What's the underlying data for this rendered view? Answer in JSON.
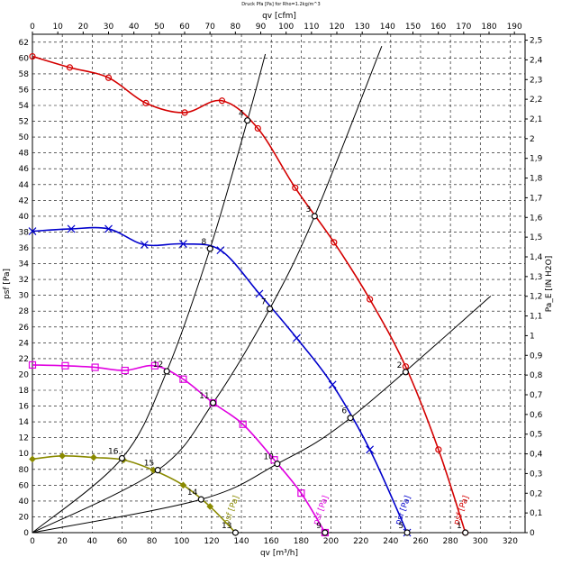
{
  "chart_data": {
    "type": "line",
    "title": "Druck Pfa [Pa] for Rho=1.2kg/m^3",
    "x_label": "qv [m³/h]",
    "x2_label": "qv [cfm]",
    "y_label": "psf [Pa]",
    "y2_label": "Pa_E [IN H2O]",
    "xlim": [
      0,
      330
    ],
    "xticks": [
      0,
      20,
      40,
      60,
      80,
      100,
      120,
      140,
      160,
      180,
      200,
      220,
      240,
      260,
      280,
      300,
      320
    ],
    "x2lim": [
      0,
      194.2
    ],
    "x2ticks": [
      0,
      10,
      20,
      30,
      40,
      50,
      60,
      70,
      80,
      90,
      100,
      110,
      120,
      130,
      140,
      150,
      160,
      170,
      180,
      190
    ],
    "ylim": [
      0,
      630
    ],
    "yticks": [
      0,
      20,
      40,
      60,
      80,
      {
        "value": 100,
        "label": "10"
      },
      {
        "value": 120,
        "label": "12"
      },
      {
        "value": 140,
        "label": "14"
      },
      {
        "value": 160,
        "label": "16"
      },
      {
        "value": 180,
        "label": "18"
      },
      {
        "value": 200,
        "label": "20"
      },
      {
        "value": 220,
        "label": "22"
      },
      {
        "value": 240,
        "label": "24"
      },
      {
        "value": 260,
        "label": "26"
      },
      {
        "value": 280,
        "label": "28"
      },
      {
        "value": 300,
        "label": "30"
      },
      {
        "value": 320,
        "label": "32"
      },
      {
        "value": 340,
        "label": "34"
      },
      {
        "value": 360,
        "label": "36"
      },
      {
        "value": 380,
        "label": "38"
      },
      {
        "value": 400,
        "label": "40"
      },
      {
        "value": 420,
        "label": "42"
      },
      {
        "value": 440,
        "label": "44"
      },
      {
        "value": 460,
        "label": "46"
      },
      {
        "value": 480,
        "label": "48"
      },
      {
        "value": 500,
        "label": "50"
      },
      {
        "value": 520,
        "label": "52"
      },
      {
        "value": 540,
        "label": "54"
      },
      {
        "value": 560,
        "label": "56"
      },
      {
        "value": 580,
        "label": "58"
      },
      {
        "value": 600,
        "label": "60"
      },
      {
        "value": 620,
        "label": "62"
      }
    ],
    "y2lim": [
      0,
      2.53
    ],
    "y2ticks": [
      0,
      {
        "value": 0.1,
        "label": "0,1"
      },
      {
        "value": 0.2,
        "label": "0,2"
      },
      {
        "value": 0.3,
        "label": "0,3"
      },
      {
        "value": 0.4,
        "label": "0,4"
      },
      {
        "value": 0.5,
        "label": "0,5"
      },
      {
        "value": 0.6,
        "label": "0,6"
      },
      {
        "value": 0.7,
        "label": "0,7"
      },
      {
        "value": 0.8,
        "label": "0,8"
      },
      {
        "value": 0.9,
        "label": "0,9"
      },
      1,
      {
        "value": 1.1,
        "label": "1,1"
      },
      {
        "value": 1.2,
        "label": "1,2"
      },
      {
        "value": 1.3,
        "label": "1,3"
      },
      {
        "value": 1.4,
        "label": "1,4"
      },
      {
        "value": 1.5,
        "label": "1,5"
      },
      {
        "value": 1.6,
        "label": "1,6"
      },
      {
        "value": 1.7,
        "label": "1,7"
      },
      {
        "value": 1.8,
        "label": "1,8"
      },
      {
        "value": 1.9,
        "label": "1,9"
      },
      2,
      {
        "value": 2.1,
        "label": "2,1"
      },
      {
        "value": 2.2,
        "label": "2,2"
      },
      {
        "value": 2.3,
        "label": "2,3"
      },
      {
        "value": 2.4,
        "label": "2,4"
      },
      {
        "value": 2.5,
        "label": "2,5"
      }
    ],
    "grid": true,
    "series": [
      {
        "name": "psf [Pa]",
        "color": "#d40000",
        "marker": "circle",
        "x": [
          0,
          25,
          51,
          76,
          102,
          127,
          151,
          176,
          202,
          226,
          250,
          272,
          290
        ],
        "values": [
          602,
          588,
          575,
          543,
          531,
          546,
          511,
          436,
          367,
          295,
          210,
          105,
          0
        ]
      },
      {
        "name": "psf [Pa]",
        "color": "#0000cc",
        "marker": "x",
        "x": [
          0,
          26,
          51,
          75,
          101,
          126,
          152,
          177,
          201,
          226,
          251
        ],
        "values": [
          381,
          384,
          384,
          364,
          365,
          357,
          302,
          246,
          187,
          105,
          0
        ]
      },
      {
        "name": "psf [Pa]",
        "color": "#e000e0",
        "marker": "square",
        "x": [
          0,
          22,
          42,
          62,
          82,
          101,
          121,
          141,
          162,
          180,
          196
        ],
        "values": [
          212,
          211,
          209,
          205,
          211,
          194,
          164,
          137,
          92,
          50,
          0
        ]
      },
      {
        "name": "psf [Pa]",
        "color": "#8a8a00",
        "marker": "diamond",
        "x": [
          0,
          20,
          41,
          61,
          81,
          101,
          119,
          136
        ],
        "values": [
          93,
          97,
          95,
          92,
          79,
          60,
          33,
          0
        ]
      }
    ],
    "system_curves": [
      {
        "color": "#000000",
        "x": [
          0,
          60,
          90,
          119,
          144,
          156
        ],
        "values": [
          0,
          94,
          204,
          359,
          521,
          605
        ]
      },
      {
        "color": "#000000",
        "x": [
          0,
          84,
          121,
          159,
          189,
          234
        ],
        "values": [
          0,
          79,
          164,
          283,
          400,
          615
        ]
      },
      {
        "color": "#000000",
        "x": [
          0,
          113,
          164,
          213,
          307
        ],
        "values": [
          0,
          42,
          87,
          145,
          299
        ]
      }
    ],
    "operating_points": [
      {
        "label": "1",
        "x": 290,
        "y": 0
      },
      {
        "label": "2",
        "x": 250,
        "y": 203
      },
      {
        "label": "3",
        "x": 189,
        "y": 400
      },
      {
        "label": "4",
        "x": 144,
        "y": 521
      },
      {
        "label": "5",
        "x": 251,
        "y": 0
      },
      {
        "label": "6",
        "x": 213,
        "y": 145
      },
      {
        "label": "7",
        "x": 159,
        "y": 283
      },
      {
        "label": "8",
        "x": 119,
        "y": 359
      },
      {
        "label": "9",
        "x": 196,
        "y": 0
      },
      {
        "label": "10",
        "x": 164,
        "y": 87
      },
      {
        "label": "11",
        "x": 121,
        "y": 164
      },
      {
        "label": "12",
        "x": 90,
        "y": 204
      },
      {
        "label": "13",
        "x": 136,
        "y": 0
      },
      {
        "label": "14",
        "x": 113,
        "y": 42
      },
      {
        "label": "15",
        "x": 84,
        "y": 79
      },
      {
        "label": "16",
        "x": 60,
        "y": 94
      }
    ]
  }
}
